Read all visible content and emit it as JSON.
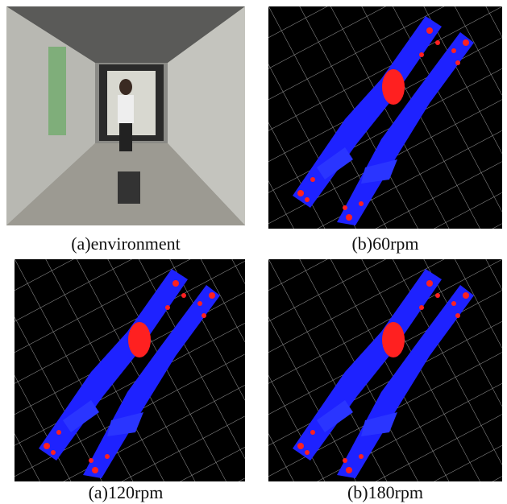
{
  "panels": [
    {
      "caption": "(a)environment"
    },
    {
      "caption": "(b)60rpm"
    },
    {
      "caption": "(a)120rpm"
    },
    {
      "caption": "(b)180rpm"
    }
  ]
}
